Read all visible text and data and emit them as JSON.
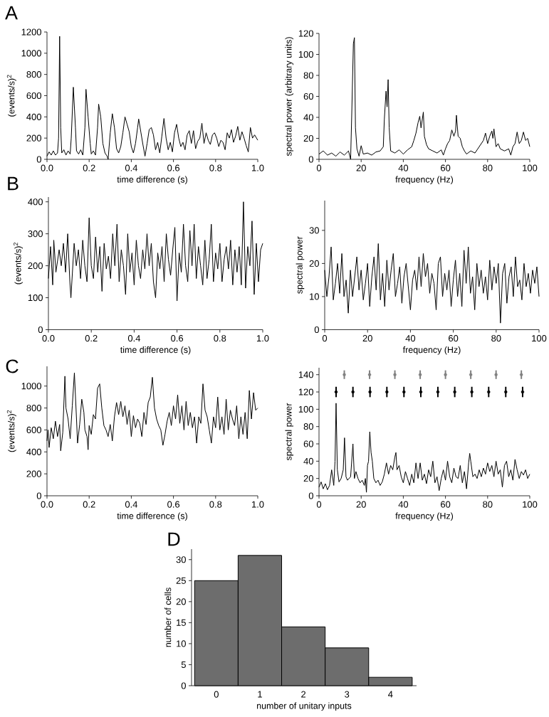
{
  "chart_data": [
    {
      "type": "line",
      "xlabel": "time difference (s)",
      "ylabel": "(events/s)$^{2}$",
      "annotations": [
        "A"
      ],
      "color": "#000000",
      "xlim": [
        0,
        1
      ],
      "ylim": [
        0,
        1200
      ],
      "xticks": [
        {
          "value": 0,
          "label": "0.0"
        },
        {
          "value": 0.2,
          "label": "0.2"
        },
        {
          "value": 0.4,
          "label": "0.4"
        },
        {
          "value": 0.6,
          "label": "0.6"
        },
        {
          "value": 0.8,
          "label": "0.8"
        },
        {
          "value": 1,
          "label": "1.0"
        }
      ],
      "yticks": [
        0,
        200,
        400,
        600,
        800,
        1000,
        1200
      ],
      "x": [
        0,
        0.01,
        0.02,
        0.03,
        0.04,
        0.05,
        0.055,
        0.06,
        0.065,
        0.07,
        0.08,
        0.09,
        0.1,
        0.11,
        0.115,
        0.125,
        0.135,
        0.14,
        0.15,
        0.16,
        0.17,
        0.18,
        0.185,
        0.195,
        0.205,
        0.21,
        0.22,
        0.23,
        0.24,
        0.245,
        0.255,
        0.265,
        0.275,
        0.285,
        0.29,
        0.3,
        0.31,
        0.32,
        0.33,
        0.34,
        0.35,
        0.36,
        0.37,
        0.38,
        0.39,
        0.4,
        0.41,
        0.42,
        0.43,
        0.435,
        0.445,
        0.455,
        0.465,
        0.475,
        0.485,
        0.495,
        0.505,
        0.515,
        0.525,
        0.535,
        0.545,
        0.555,
        0.565,
        0.575,
        0.585,
        0.595,
        0.605,
        0.615,
        0.625,
        0.635,
        0.645,
        0.655,
        0.665,
        0.675,
        0.685,
        0.695,
        0.705,
        0.715,
        0.725,
        0.735,
        0.745,
        0.755,
        0.765,
        0.775,
        0.785,
        0.795,
        0.805,
        0.815,
        0.825,
        0.835,
        0.845,
        0.855,
        0.865,
        0.875,
        0.885,
        0.895,
        0.905,
        0.915,
        0.925,
        0.935,
        0.945,
        0.955,
        0.965,
        0.975,
        0.985,
        1.0
      ],
      "values": [
        30,
        70,
        40,
        80,
        40,
        60,
        200,
        1160,
        300,
        60,
        90,
        40,
        80,
        50,
        200,
        680,
        300,
        80,
        50,
        90,
        40,
        300,
        660,
        400,
        150,
        50,
        80,
        40,
        300,
        520,
        400,
        150,
        60,
        30,
        0,
        250,
        430,
        300,
        100,
        60,
        120,
        250,
        400,
        330,
        260,
        120,
        60,
        150,
        300,
        380,
        260,
        140,
        30,
        150,
        280,
        300,
        230,
        90,
        160,
        60,
        220,
        385,
        200,
        90,
        160,
        70,
        250,
        330,
        200,
        120,
        160,
        90,
        230,
        270,
        150,
        270,
        100,
        170,
        200,
        340,
        150,
        250,
        180,
        140,
        230,
        250,
        200,
        120,
        180,
        160,
        90,
        250,
        200,
        280,
        160,
        220,
        310,
        180,
        260,
        200,
        130,
        70,
        300,
        200,
        230,
        180
      ]
    },
    {
      "type": "line",
      "xlabel": "frequency (Hz)",
      "ylabel": "spectral power (arbitrary units)",
      "color": "#000000",
      "xlim": [
        0,
        100
      ],
      "ylim": [
        0,
        120
      ],
      "xticks": [
        0,
        20,
        40,
        60,
        80,
        100
      ],
      "yticks": [
        0,
        20,
        40,
        60,
        80,
        100,
        120
      ],
      "x": [
        0,
        2,
        4,
        6,
        8,
        10,
        12,
        14,
        15,
        15.5,
        16.3,
        16.8,
        17.3,
        18,
        19,
        20,
        21,
        23,
        25,
        27,
        29,
        30.5,
        31,
        31.8,
        32.3,
        32.8,
        33.3,
        34,
        36,
        38,
        40,
        42,
        44,
        45,
        46,
        47,
        47.8,
        48.4,
        49,
        49.5,
        50,
        51,
        52,
        54,
        56,
        58,
        59,
        60,
        61,
        62,
        63,
        64,
        64.8,
        65.2,
        66,
        67,
        68,
        69,
        70,
        72,
        74,
        76,
        78,
        79,
        80,
        81,
        82,
        82.5,
        83,
        84,
        85,
        86,
        88,
        90,
        91,
        92,
        93,
        94,
        95,
        96,
        97,
        98,
        99,
        100
      ],
      "values": [
        5,
        8,
        4,
        6,
        3,
        7,
        4,
        8,
        0,
        40,
        110,
        116,
        30,
        10,
        3,
        13,
        5,
        6,
        4,
        7,
        8,
        12,
        38,
        65,
        50,
        76,
        30,
        8,
        6,
        9,
        5,
        9,
        12,
        18,
        25,
        35,
        41,
        30,
        38,
        45,
        22,
        14,
        10,
        8,
        6,
        9,
        4,
        10,
        15,
        18,
        28,
        22,
        27,
        42,
        22,
        20,
        12,
        8,
        5,
        8,
        6,
        12,
        18,
        25,
        15,
        22,
        27,
        20,
        29,
        12,
        15,
        10,
        8,
        10,
        4,
        12,
        15,
        26,
        15,
        18,
        26,
        18,
        20,
        12
      ]
    },
    {
      "type": "line",
      "xlabel": "time difference (s)",
      "ylabel": "(events/s)$^{2}$",
      "annotations": [
        "B"
      ],
      "color": "#000000",
      "xlim": [
        0,
        1
      ],
      "ylim": [
        0,
        415
      ],
      "xticks": [
        {
          "value": 0,
          "label": "0.0"
        },
        {
          "value": 0.2,
          "label": "0.2"
        },
        {
          "value": 0.4,
          "label": "0.4"
        },
        {
          "value": 0.6,
          "label": "0.6"
        },
        {
          "value": 0.8,
          "label": "0.8"
        },
        {
          "value": 1,
          "label": "1.0"
        }
      ],
      "yticks": [
        0,
        100,
        200,
        300,
        400
      ],
      "x": [
        0,
        0.01,
        0.02,
        0.025,
        0.035,
        0.05,
        0.06,
        0.07,
        0.08,
        0.09,
        0.1,
        0.105,
        0.12,
        0.13,
        0.14,
        0.15,
        0.16,
        0.17,
        0.18,
        0.19,
        0.2,
        0.21,
        0.22,
        0.23,
        0.24,
        0.25,
        0.26,
        0.27,
        0.28,
        0.29,
        0.3,
        0.31,
        0.32,
        0.33,
        0.34,
        0.35,
        0.36,
        0.37,
        0.38,
        0.39,
        0.4,
        0.41,
        0.42,
        0.43,
        0.44,
        0.45,
        0.46,
        0.47,
        0.48,
        0.49,
        0.5,
        0.51,
        0.52,
        0.53,
        0.54,
        0.55,
        0.56,
        0.57,
        0.58,
        0.59,
        0.6,
        0.61,
        0.62,
        0.63,
        0.64,
        0.65,
        0.66,
        0.67,
        0.68,
        0.69,
        0.7,
        0.71,
        0.72,
        0.73,
        0.74,
        0.75,
        0.76,
        0.77,
        0.78,
        0.79,
        0.8,
        0.81,
        0.82,
        0.83,
        0.84,
        0.85,
        0.86,
        0.87,
        0.88,
        0.89,
        0.9,
        0.91,
        0.92,
        0.93,
        0.94,
        0.95,
        0.96,
        0.97,
        0.98,
        0.99,
        1.0
      ],
      "values": [
        160,
        260,
        140,
        280,
        180,
        250,
        200,
        270,
        180,
        300,
        150,
        100,
        270,
        200,
        250,
        160,
        280,
        200,
        150,
        350,
        200,
        160,
        290,
        180,
        260,
        120,
        270,
        190,
        230,
        160,
        300,
        200,
        330,
        150,
        250,
        200,
        110,
        300,
        180,
        240,
        140,
        280,
        200,
        160,
        250,
        190,
        300,
        200,
        270,
        150,
        100,
        240,
        190,
        260,
        150,
        300,
        220,
        170,
        250,
        320,
        90,
        240,
        180,
        330,
        200,
        150,
        310,
        200,
        330,
        160,
        260,
        200,
        140,
        280,
        160,
        220,
        330,
        150,
        240,
        190,
        270,
        150,
        220,
        260,
        190,
        280,
        140,
        250,
        180,
        260,
        140,
        400,
        130,
        260,
        200,
        340,
        110,
        270,
        150,
        250,
        270
      ]
    },
    {
      "type": "line",
      "xlabel": "frequency (Hz)",
      "ylabel": "spectral power",
      "color": "#000000",
      "xlim": [
        0,
        100
      ],
      "ylim": [
        0,
        39
      ],
      "xticks": [
        0,
        20,
        40,
        60,
        80,
        100
      ],
      "yticks": [
        0,
        10,
        20,
        30
      ],
      "x": [
        0,
        1,
        2,
        3,
        4,
        5,
        6,
        7,
        8,
        9,
        10,
        11,
        12,
        13,
        14,
        15,
        16,
        17,
        18,
        19,
        20,
        21,
        22,
        23,
        24,
        25,
        26,
        27,
        28,
        29,
        30,
        31,
        32,
        33,
        34,
        35,
        36,
        37,
        38,
        39,
        40,
        41,
        42,
        43,
        44,
        45,
        46,
        47,
        48,
        49,
        50,
        51,
        52,
        53,
        54,
        55,
        56,
        57,
        58,
        59,
        60,
        61,
        62,
        63,
        64,
        65,
        66,
        67,
        68,
        69,
        70,
        71,
        72,
        73,
        74,
        75,
        76,
        77,
        78,
        79,
        80,
        81,
        82,
        83,
        84,
        85,
        86,
        87,
        88,
        89,
        90,
        91,
        92,
        93,
        94,
        95,
        96,
        97,
        98,
        99,
        100
      ],
      "values": [
        18,
        10,
        16,
        25,
        9,
        14,
        20,
        11,
        23,
        10,
        15,
        5,
        18,
        10,
        16,
        22,
        12,
        18,
        9,
        14,
        20,
        7,
        16,
        22,
        12,
        26,
        9,
        17,
        7,
        21,
        12,
        18,
        23,
        10,
        14,
        19,
        8,
        16,
        20,
        13,
        6,
        15,
        18,
        12,
        22,
        13,
        23,
        16,
        20,
        11,
        17,
        14,
        6,
        20,
        22,
        10,
        17,
        12,
        18,
        7,
        15,
        21,
        10,
        17,
        7,
        24,
        14,
        25,
        11,
        16,
        6,
        20,
        13,
        18,
        11,
        16,
        9,
        21,
        12,
        19,
        14,
        20,
        2,
        17,
        20,
        8,
        16,
        19,
        10,
        22,
        13,
        15,
        9,
        20,
        13,
        17,
        11,
        18,
        14,
        19,
        10
      ]
    },
    {
      "type": "line",
      "xlabel": "time difference (s)",
      "ylabel": "(events/s)$^{2}$",
      "annotations": [
        "C"
      ],
      "color": "#000000",
      "xlim": [
        0,
        1
      ],
      "ylim": [
        0,
        1180
      ],
      "xticks": [
        {
          "value": 0,
          "label": "0.0"
        },
        {
          "value": 0.2,
          "label": "0.2"
        },
        {
          "value": 0.4,
          "label": "0.4"
        },
        {
          "value": 0.6,
          "label": "0.6"
        },
        {
          "value": 0.8,
          "label": "0.8"
        },
        {
          "value": 1,
          "label": "1.0"
        }
      ],
      "yticks": [
        0,
        200,
        400,
        600,
        800,
        1000
      ],
      "x": [
        0,
        0.005,
        0.01,
        0.02,
        0.03,
        0.04,
        0.05,
        0.06,
        0.065,
        0.075,
        0.085,
        0.09,
        0.1,
        0.11,
        0.12,
        0.13,
        0.14,
        0.145,
        0.155,
        0.165,
        0.175,
        0.18,
        0.19,
        0.195,
        0.2,
        0.21,
        0.22,
        0.23,
        0.24,
        0.25,
        0.26,
        0.27,
        0.28,
        0.29,
        0.3,
        0.31,
        0.32,
        0.33,
        0.34,
        0.35,
        0.36,
        0.37,
        0.38,
        0.39,
        0.4,
        0.41,
        0.42,
        0.43,
        0.44,
        0.45,
        0.46,
        0.47,
        0.48,
        0.49,
        0.5,
        0.51,
        0.52,
        0.53,
        0.54,
        0.55,
        0.56,
        0.57,
        0.58,
        0.59,
        0.6,
        0.61,
        0.62,
        0.63,
        0.64,
        0.65,
        0.66,
        0.67,
        0.68,
        0.69,
        0.7,
        0.71,
        0.72,
        0.73,
        0.74,
        0.75,
        0.76,
        0.77,
        0.78,
        0.79,
        0.8,
        0.81,
        0.82,
        0.83,
        0.84,
        0.85,
        0.86,
        0.87,
        0.88,
        0.89,
        0.9,
        0.91,
        0.92,
        0.93,
        0.94,
        0.95,
        0.96,
        0.97,
        0.98,
        0.99,
        1.0
      ],
      "values": [
        500,
        600,
        440,
        620,
        520,
        680,
        540,
        650,
        410,
        580,
        1090,
        800,
        700,
        520,
        820,
        1120,
        700,
        480,
        650,
        880,
        760,
        600,
        540,
        420,
        640,
        560,
        740,
        700,
        980,
        1020,
        800,
        640,
        600,
        540,
        650,
        500,
        720,
        850,
        740,
        860,
        720,
        820,
        650,
        780,
        540,
        730,
        620,
        700,
        660,
        540,
        760,
        650,
        850,
        900,
        1080,
        800,
        700,
        640,
        600,
        460,
        560,
        680,
        760,
        640,
        820,
        700,
        920,
        660,
        820,
        600,
        860,
        640,
        760,
        620,
        720,
        480,
        720,
        660,
        1020,
        780,
        720,
        600,
        480,
        720,
        620,
        900,
        600,
        720,
        560,
        880,
        600,
        780,
        700,
        640,
        820,
        520,
        720,
        560,
        760,
        520,
        960,
        700,
        940,
        780,
        800
      ]
    },
    {
      "type": "line",
      "xlabel": "frequency (Hz)",
      "ylabel": "spectral power",
      "xlim": [
        0,
        100
      ],
      "ylim": [
        0,
        148
      ],
      "xticks": [
        0,
        20,
        40,
        60,
        80,
        100
      ],
      "yticks": [
        0,
        20,
        40,
        60,
        80,
        100,
        120,
        140
      ],
      "series": [
        {
          "type": "line",
          "color": "#000000",
          "x": [
            0,
            1,
            2,
            3,
            4,
            5,
            6,
            7,
            7.6,
            8.1,
            8.7,
            9.5,
            10.5,
            11.5,
            12.1,
            12.8,
            13.5,
            15,
            16.1,
            16.8,
            17.5,
            18.5,
            19.5,
            20.5,
            21.5,
            22,
            22.5,
            23,
            23.5,
            24.1,
            24.7,
            25.3,
            26,
            27,
            28,
            29,
            30,
            31,
            32,
            33,
            34,
            35,
            36,
            36.5,
            37,
            38,
            39,
            40,
            41,
            42,
            43,
            44,
            45,
            46,
            47,
            48,
            49,
            50,
            51,
            52,
            53,
            54,
            55,
            56,
            57,
            58,
            59,
            60,
            61,
            62,
            63,
            64,
            65,
            66,
            67,
            68,
            69,
            70,
            71,
            71.5,
            72,
            73,
            74,
            75,
            76,
            77,
            78,
            79,
            80,
            81,
            82,
            83,
            84,
            85,
            86,
            87,
            88,
            89,
            90,
            91,
            92,
            93,
            94,
            95,
            96,
            97,
            98,
            99,
            100
          ],
          "values": [
            10,
            16,
            8,
            14,
            7,
            12,
            30,
            12,
            40,
            107,
            30,
            16,
            20,
            30,
            67,
            22,
            18,
            22,
            60,
            20,
            28,
            20,
            15,
            18,
            12,
            20,
            4,
            35,
            40,
            74,
            50,
            40,
            20,
            15,
            18,
            12,
            16,
            25,
            38,
            25,
            35,
            30,
            45,
            50,
            30,
            35,
            22,
            15,
            28,
            20,
            12,
            25,
            15,
            38,
            20,
            38,
            18,
            25,
            14,
            30,
            22,
            40,
            15,
            22,
            6,
            20,
            30,
            18,
            40,
            22,
            15,
            32,
            22,
            20,
            35,
            15,
            28,
            8,
            38,
            49,
            40,
            22,
            25,
            20,
            30,
            22,
            32,
            25,
            38,
            28,
            35,
            22,
            40,
            25,
            30,
            10,
            35,
            40,
            22,
            30,
            18,
            42,
            30,
            20,
            28,
            24,
            30,
            20,
            25
          ]
        },
        {
          "type": "scatter",
          "color": "#000000",
          "x": [
            8.1,
            16.1,
            24.2,
            32.2,
            40.3,
            48.3,
            56.4,
            64.4,
            72.5,
            80.5,
            88.6,
            96.6
          ],
          "values": [
            120,
            120,
            120,
            120,
            120,
            120,
            120,
            120,
            120,
            120,
            120,
            120
          ],
          "errors": [
            6,
            6,
            6,
            6,
            6,
            6,
            6,
            6,
            6,
            6,
            6,
            6
          ]
        },
        {
          "type": "scatter",
          "color": "#808080",
          "x": [
            12,
            24,
            36,
            48,
            60,
            72,
            84,
            96
          ],
          "values": [
            140,
            140,
            140,
            140,
            140,
            140,
            140,
            140
          ],
          "errors": [
            5,
            5,
            5,
            5,
            5,
            5,
            5,
            5
          ]
        }
      ]
    },
    {
      "type": "bar",
      "xlabel": "number of unitary inputs",
      "ylabel": "number of cells",
      "annotations": [
        "D"
      ],
      "color": "#6d6d6d",
      "ylim": [
        0,
        32.5
      ],
      "categories": [
        "0",
        "1",
        "2",
        "3",
        "4"
      ],
      "values": [
        25,
        31,
        14,
        9,
        2
      ],
      "yticks": [
        0,
        5,
        10,
        15,
        20,
        25,
        30
      ]
    }
  ]
}
